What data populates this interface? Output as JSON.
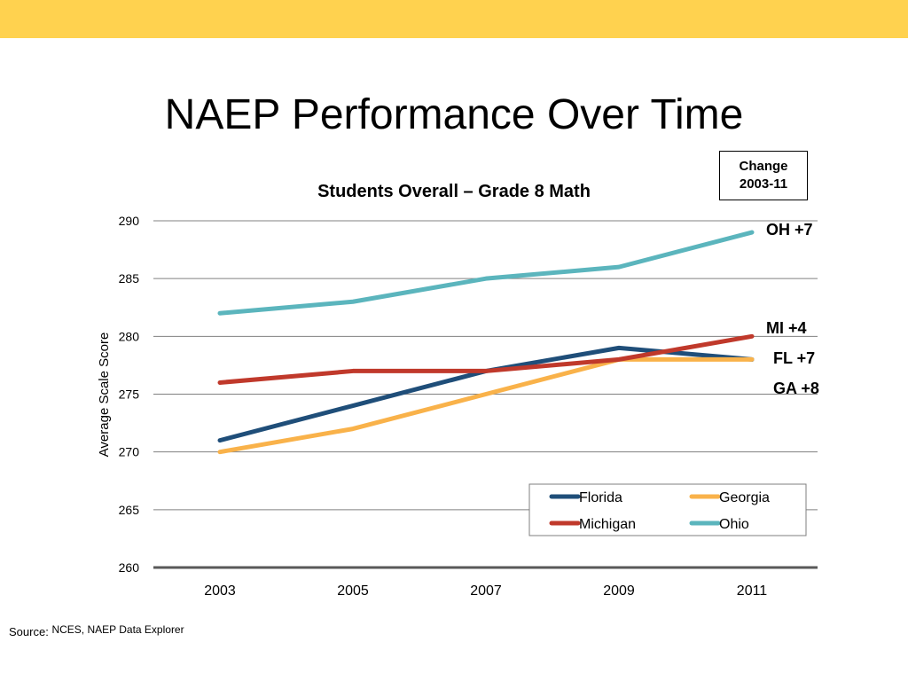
{
  "header": {
    "title": "NAEP Performance Over Time",
    "change_box_line1": "Change",
    "change_box_line2": "2003-11"
  },
  "source": {
    "label": "Source:",
    "text": "NCES, NAEP Data Explorer"
  },
  "colors": {
    "top_bar": "#FFD24F",
    "Florida": "#1F4E79",
    "Georgia": "#F9B24A",
    "Michigan": "#C0392B",
    "Ohio": "#5BB5BD",
    "gridline": "#808080",
    "axis": "#595959"
  },
  "chart_data": {
    "type": "line",
    "title": "Students Overall – Grade 8 Math",
    "xlabel": "",
    "ylabel": "Average Scale Score",
    "x": [
      2003,
      2005,
      2007,
      2009,
      2011
    ],
    "ylim": [
      260,
      290
    ],
    "yticks": [
      260,
      265,
      270,
      275,
      280,
      285,
      290
    ],
    "grid": true,
    "legend_placement": "bottom-right",
    "series": [
      {
        "name": "Florida",
        "values": [
          271,
          274,
          277,
          279,
          278
        ],
        "change_label": "FL +7"
      },
      {
        "name": "Georgia",
        "values": [
          270,
          272,
          275,
          278,
          278
        ],
        "change_label": "GA +8"
      },
      {
        "name": "Michigan",
        "values": [
          276,
          277,
          277,
          278,
          280
        ],
        "change_label": "MI +4"
      },
      {
        "name": "Ohio",
        "values": [
          282,
          283,
          285,
          286,
          289
        ],
        "change_label": "OH +7"
      }
    ]
  }
}
